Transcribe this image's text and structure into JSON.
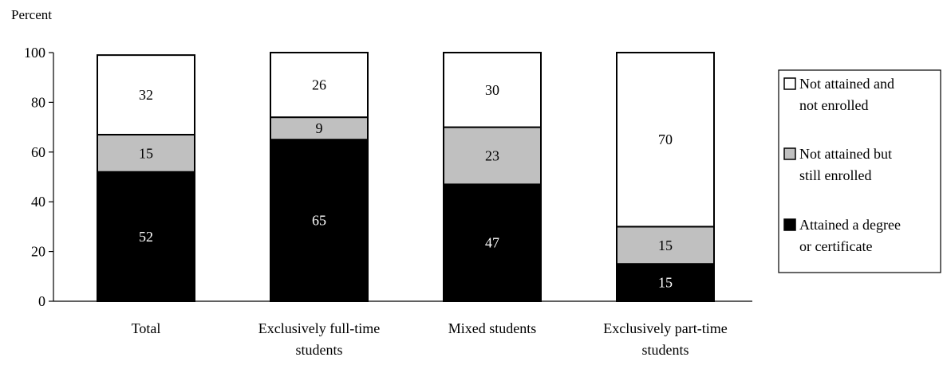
{
  "chart_data": {
    "type": "bar",
    "stacked": true,
    "ylabel": "Percent",
    "ylim": [
      0,
      100
    ],
    "yticks": [
      0,
      20,
      40,
      60,
      80,
      100
    ],
    "grid": false,
    "legend_position": "right",
    "categories": [
      [
        "Total"
      ],
      [
        "Exclusively full-time",
        "students"
      ],
      [
        "Mixed students"
      ],
      [
        "Exclusively part-time",
        "students"
      ]
    ],
    "series": [
      {
        "name": "Attained a degree or certificate",
        "legend_lines": [
          "Attained a degree",
          "or certificate"
        ],
        "color": "#000000",
        "label_color": "#ffffff",
        "values": [
          52,
          65,
          47,
          15
        ]
      },
      {
        "name": "Not attained but still enrolled",
        "legend_lines": [
          "Not attained but",
          "still enrolled"
        ],
        "color": "#c0c0c0",
        "label_color": "#000000",
        "values": [
          15,
          9,
          23,
          15
        ]
      },
      {
        "name": "Not attained and not enrolled",
        "legend_lines": [
          "Not attained and",
          "not enrolled"
        ],
        "color": "#ffffff",
        "label_color": "#000000",
        "values": [
          32,
          26,
          30,
          70
        ]
      }
    ]
  }
}
